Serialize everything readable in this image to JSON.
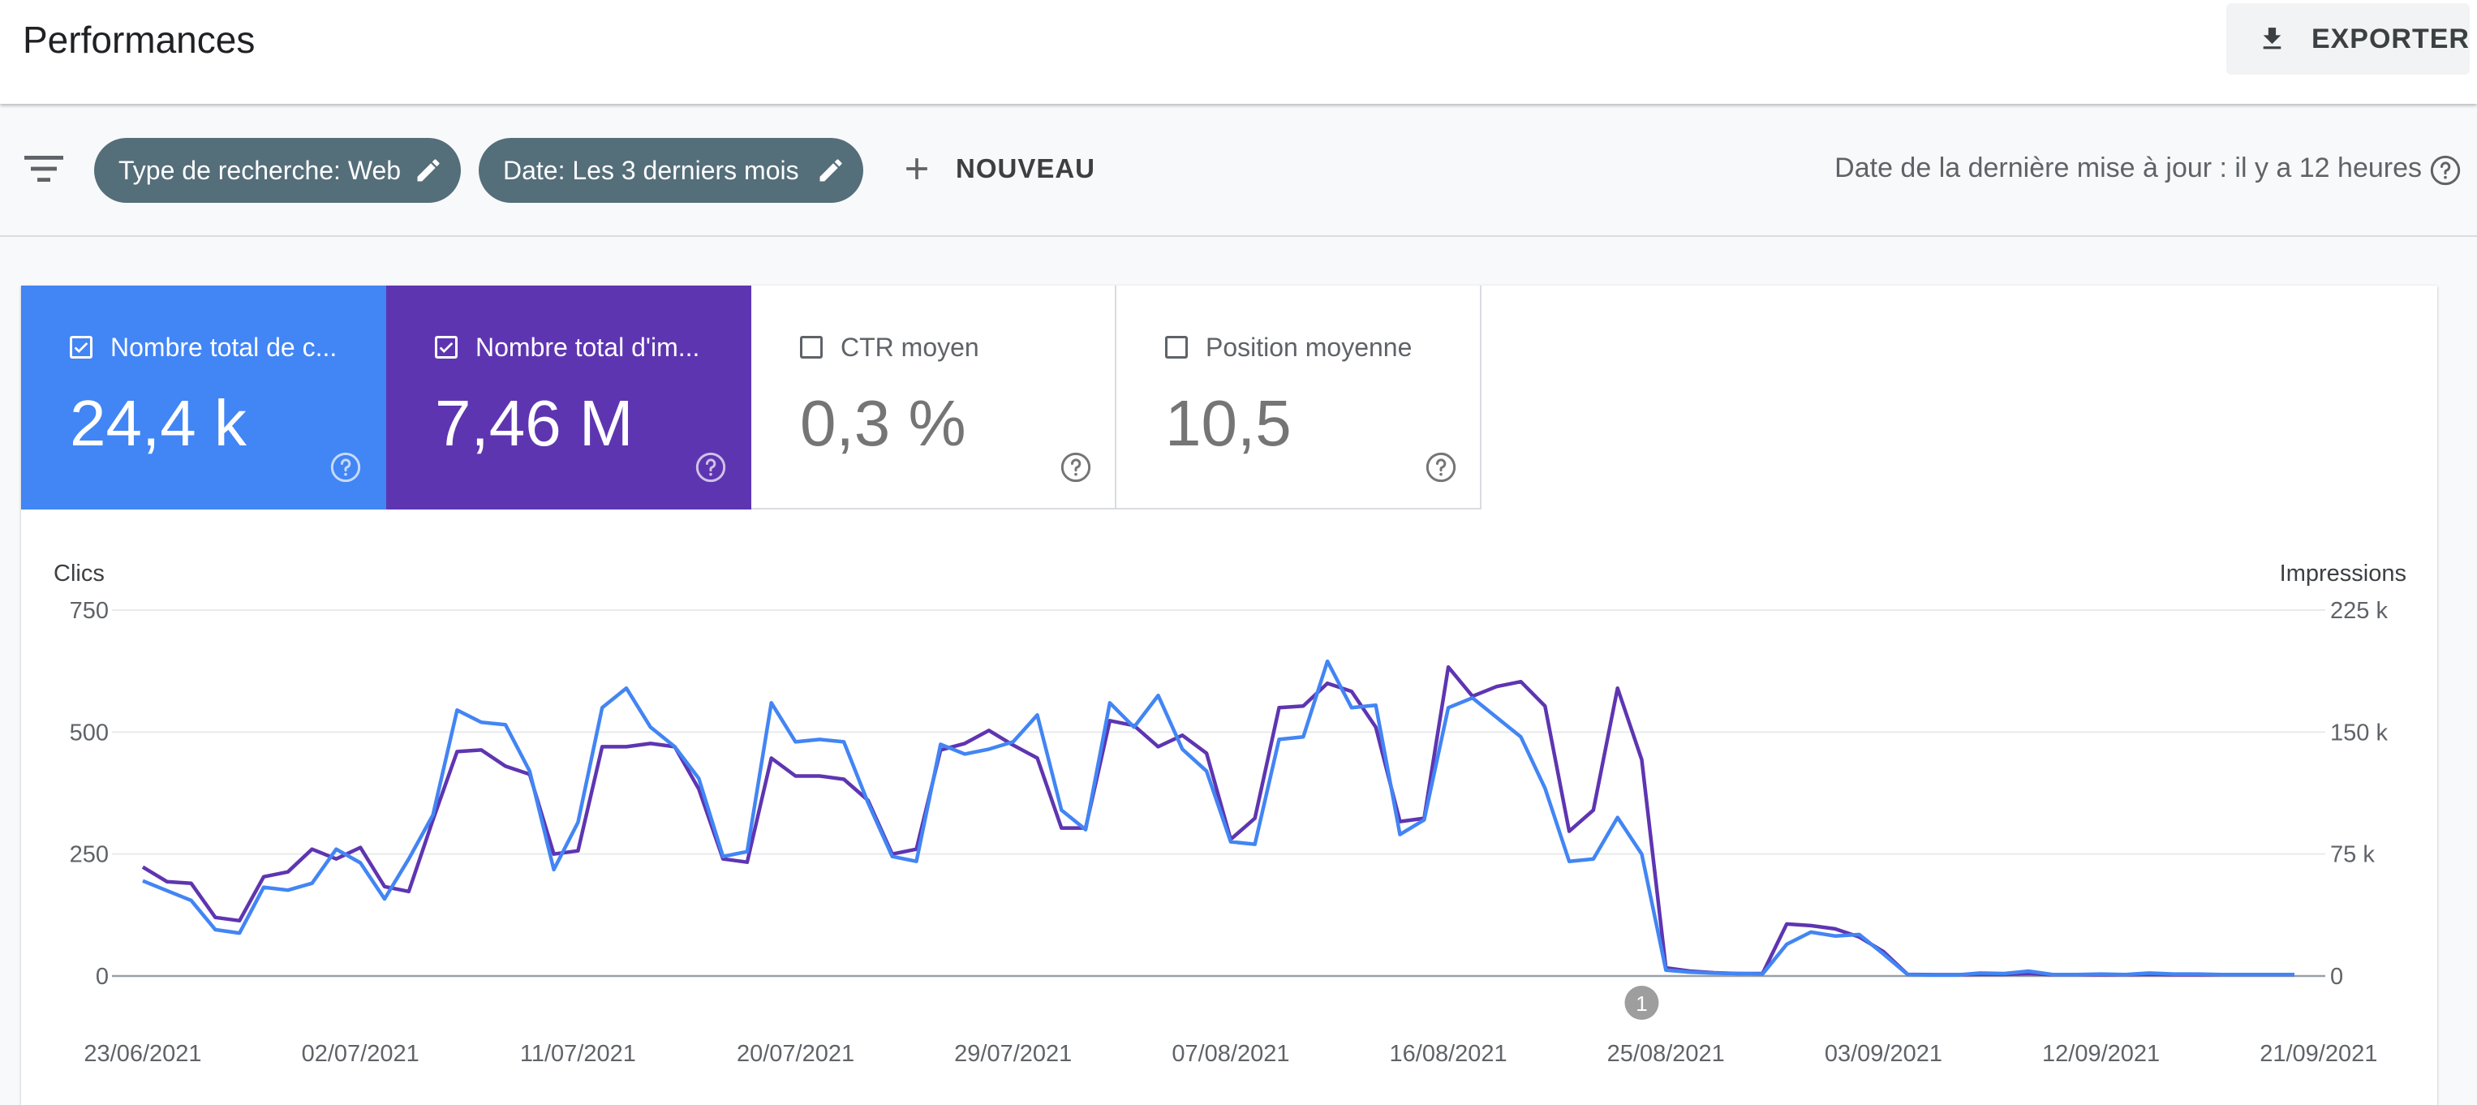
{
  "header": {
    "title": "Performances",
    "export_label": "EXPORTER"
  },
  "filters": {
    "chips": [
      {
        "label": "Type de recherche: Web"
      },
      {
        "label": "Date: Les 3 derniers mois"
      }
    ],
    "new_label": "NOUVEAU",
    "last_update": "Date de la dernière mise à jour : il y a 12 heures"
  },
  "metrics": [
    {
      "label": "Nombre total de c...",
      "value": "24,4 k",
      "checked": true,
      "color": "#4285f4"
    },
    {
      "label": "Nombre total d'im...",
      "value": "7,46 M",
      "checked": true,
      "color": "#5e35b1"
    },
    {
      "label": "CTR moyen",
      "value": "0,3 %",
      "checked": false
    },
    {
      "label": "Position moyenne",
      "value": "10,5",
      "checked": false
    }
  ],
  "chart_data": {
    "type": "line",
    "left_axis": {
      "title": "Clics",
      "ticks": [
        0,
        250,
        500,
        750
      ],
      "tick_labels": [
        "0",
        "250",
        "500",
        "750"
      ],
      "range": [
        0,
        750
      ]
    },
    "right_axis": {
      "title": "Impressions",
      "ticks": [
        0,
        75000,
        150000,
        225000
      ],
      "tick_labels": [
        "0",
        "75 k",
        "150 k",
        "225 k"
      ],
      "range": [
        0,
        225000
      ]
    },
    "x_tick_labels": [
      "23/06/2021",
      "02/07/2021",
      "11/07/2021",
      "20/07/2021",
      "29/07/2021",
      "07/08/2021",
      "16/08/2021",
      "25/08/2021",
      "03/09/2021",
      "12/09/2021",
      "21/09/2021"
    ],
    "annotation": {
      "label": "1",
      "date": "24/08/2021"
    },
    "grid": true,
    "series": [
      {
        "name": "Clics",
        "axis": "left",
        "color": "#4285f4",
        "values": [
          195,
          175,
          155,
          95,
          88,
          182,
          176,
          190,
          260,
          232,
          158,
          240,
          330,
          545,
          520,
          515,
          420,
          218,
          315,
          550,
          590,
          510,
          470,
          405,
          245,
          255,
          560,
          480,
          485,
          480,
          355,
          245,
          235,
          475,
          455,
          465,
          480,
          535,
          340,
          300,
          560,
          510,
          575,
          465,
          420,
          275,
          270,
          485,
          490,
          645,
          550,
          555,
          290,
          320,
          550,
          570,
          530,
          490,
          385,
          235,
          240,
          325,
          250,
          12,
          8,
          6,
          5,
          4,
          65,
          90,
          82,
          85,
          45,
          3,
          2,
          2,
          6,
          5,
          10,
          3,
          3,
          4,
          3,
          6,
          4,
          4,
          3,
          3,
          3,
          3
        ]
      },
      {
        "name": "Impressions",
        "axis": "right",
        "color": "#5e35b1",
        "values": [
          67000,
          58000,
          57000,
          36000,
          34000,
          61000,
          64000,
          78000,
          72000,
          79000,
          55000,
          52000,
          96000,
          138000,
          139000,
          129000,
          124000,
          75000,
          77000,
          141000,
          141000,
          143000,
          141000,
          115000,
          72000,
          70000,
          134000,
          123000,
          123000,
          121000,
          108000,
          75000,
          78000,
          139000,
          143000,
          151000,
          142000,
          134000,
          91000,
          91000,
          157000,
          154000,
          141000,
          148000,
          137000,
          84000,
          97000,
          165000,
          166000,
          180000,
          175000,
          153000,
          95000,
          97000,
          190000,
          172000,
          178000,
          181000,
          166000,
          89000,
          102000,
          177000,
          133000,
          5000,
          3000,
          2000,
          1500,
          1500,
          32000,
          31000,
          29000,
          24000,
          15000,
          1000,
          800,
          800,
          1000,
          1000,
          1500,
          800,
          800,
          800,
          800,
          1000,
          800,
          800,
          800,
          800,
          800,
          800
        ]
      }
    ]
  }
}
